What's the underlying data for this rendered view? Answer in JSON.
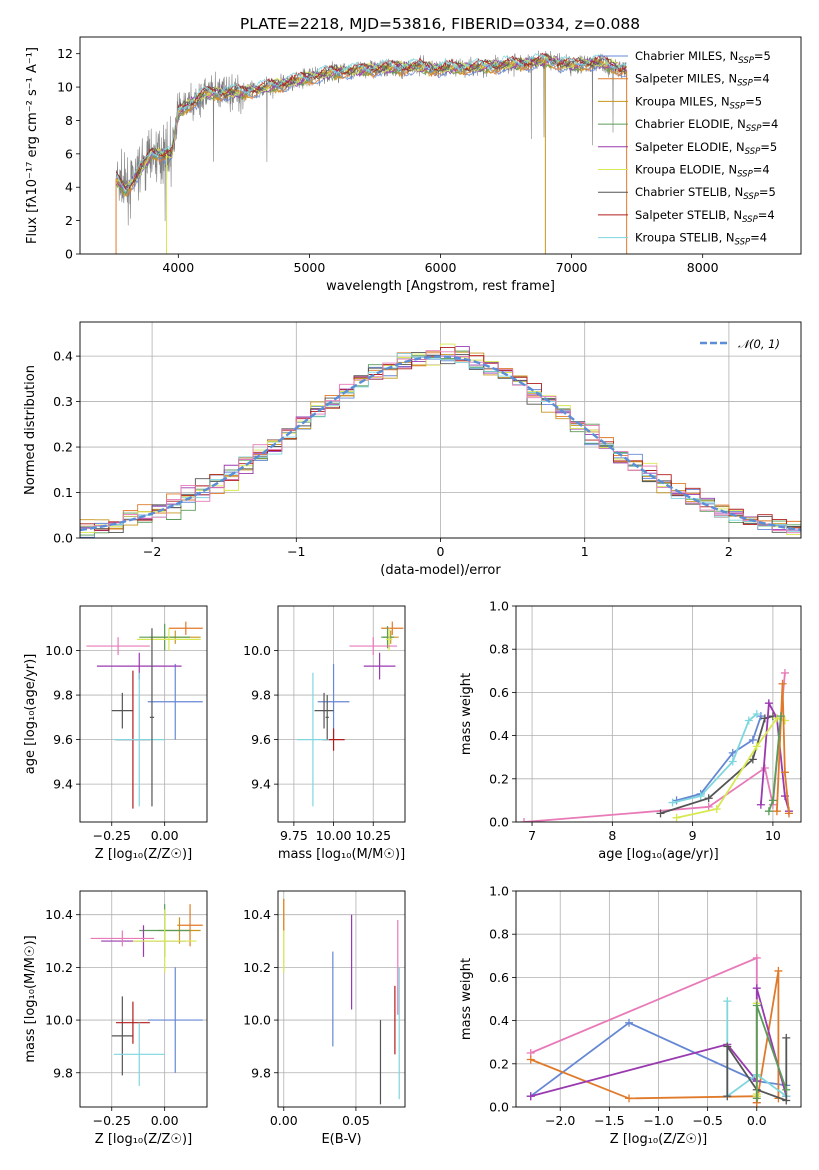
{
  "figure_title": "PLATE=2218, MJD=53816, FIBERID=0334, z=0.088",
  "colors": {
    "Chabrier MILES": "#6688d4",
    "Salpeter MILES": "#e07a2a",
    "Kroupa MILES": "#c8961e",
    "Chabrier ELODIE": "#5a9c5a",
    "Salpeter ELODIE": "#9a3ab0",
    "Kroupa ELODIE": "#d8e850",
    "Chabrier STELIB": "#555555",
    "Salpeter STELIB": "#b01c1c",
    "Kroupa STELIB": "#7fd6de",
    "extra_pink": "#e87ab8",
    "gray_spectrum": "#808080",
    "normal_dash": "#5b8ed6"
  },
  "chart_data": [
    {
      "id": "spectrum",
      "type": "line",
      "xlabel": "wavelength [Angstrom, rest frame]",
      "ylabel": "Flux [fλ10⁻¹⁷ erg cm⁻² s⁻¹ A⁻¹]",
      "xlim": [
        3250,
        8750
      ],
      "ylim": [
        0,
        13
      ],
      "xticks": [
        4000,
        5000,
        6000,
        7000,
        8000
      ],
      "yticks": [
        0,
        2,
        4,
        6,
        8,
        10,
        12
      ],
      "grid": false,
      "legend_position": "right",
      "data_wavelength": [
        3525,
        3600,
        3800,
        3950,
        4000,
        4200,
        4500,
        4800,
        5000,
        5200,
        5500,
        5800,
        6000,
        6300,
        6600,
        6800,
        7000,
        7200,
        7420
      ],
      "data_flux": [
        4.5,
        3.8,
        6.0,
        6.0,
        8.5,
        9.6,
        9.7,
        10.2,
        10.6,
        10.9,
        11.1,
        11.2,
        11.1,
        11.2,
        11.4,
        11.6,
        11.3,
        11.5,
        11.0
      ],
      "legend": [
        {
          "name": "Chabrier MILES",
          "label": "Chabrier MILES, N",
          "sub": "SSP",
          "n": "=5"
        },
        {
          "name": "Salpeter MILES",
          "label": "Salpeter MILES, N",
          "sub": "SSP",
          "n": "=4"
        },
        {
          "name": "Kroupa MILES",
          "label": "Kroupa MILES, N",
          "sub": "SSP",
          "n": "=5"
        },
        {
          "name": "Chabrier ELODIE",
          "label": "Chabrier ELODIE, N",
          "sub": "SSP",
          "n": "=4"
        },
        {
          "name": "Salpeter ELODIE",
          "label": "Salpeter ELODIE, N",
          "sub": "SSP",
          "n": "=5"
        },
        {
          "name": "Kroupa ELODIE",
          "label": "Kroupa ELODIE, N",
          "sub": "SSP",
          "n": "=4"
        },
        {
          "name": "Chabrier STELIB",
          "label": "Chabrier STELIB, N",
          "sub": "SSP",
          "n": "=5"
        },
        {
          "name": "Salpeter STELIB",
          "label": "Salpeter STELIB, N",
          "sub": "SSP",
          "n": "=4"
        },
        {
          "name": "Kroupa STELIB",
          "label": "Kroupa STELIB, N",
          "sub": "SSP",
          "n": "=4"
        }
      ]
    },
    {
      "id": "residuals",
      "type": "line",
      "xlabel": "(data-model)/error",
      "ylabel": "Normed distribution",
      "xlim": [
        -2.5,
        2.5
      ],
      "ylim": [
        0,
        0.475
      ],
      "xticks": [
        -2,
        -1,
        0,
        1,
        2
      ],
      "yticks": [
        0.0,
        0.1,
        0.2,
        0.3,
        0.4
      ],
      "grid": true,
      "legend_position": "top-right",
      "normal_label": "𝒩(0, 1)",
      "bin_width": 0.1
    },
    {
      "id": "age_vs_Z",
      "type": "scatter",
      "xlabel": "Z [log₁₀(Z/Z☉)]",
      "ylabel": "age  [log₁₀(age/yr)]",
      "xlim": [
        -0.4,
        0.2
      ],
      "ylim": [
        9.23,
        10.2
      ],
      "xticks": [
        -0.25,
        0.0
      ],
      "yticks": [
        9.4,
        9.6,
        9.8,
        10.0
      ],
      "grid": true,
      "points": [
        {
          "model": "Chabrier MILES",
          "x": 0.05,
          "y": 9.77,
          "xerr": 0.13,
          "yerr": 0.17
        },
        {
          "model": "Salpeter MILES",
          "x": 0.1,
          "y": 10.1,
          "xerr": 0.08,
          "yerr": 0.03
        },
        {
          "model": "Kroupa MILES",
          "x": 0.05,
          "y": 10.06,
          "xerr": 0.12,
          "yerr": 0.03
        },
        {
          "model": "Chabrier ELODIE",
          "x": 0.0,
          "y": 10.06,
          "xerr": 0.12,
          "yerr": 0.06
        },
        {
          "model": "Salpeter ELODIE",
          "x": -0.12,
          "y": 9.93,
          "xerr": 0.2,
          "yerr": 0.06
        },
        {
          "model": "Kroupa ELODIE",
          "x": 0.02,
          "y": 10.05,
          "xerr": 0.15,
          "yerr": 0.05
        },
        {
          "model": "Chabrier STELIB",
          "x": -0.2,
          "y": 9.73,
          "xerr": 0.05,
          "yerr": 0.08
        },
        {
          "model": "Salpeter STELIB",
          "x": -0.15,
          "y": 9.6,
          "xerr": 0.08,
          "yerr": 0.31
        },
        {
          "model": "Kroupa STELIB",
          "x": -0.12,
          "y": 9.6,
          "xerr": 0.12,
          "yerr": 0.3
        },
        {
          "model": "extra_pink",
          "x": -0.22,
          "y": 10.02,
          "xerr": 0.15,
          "yerr": 0.04
        },
        {
          "model": "Chabrier STELIB",
          "x": -0.06,
          "y": 9.7,
          "xerr": 0.01,
          "yerr": 0.4
        }
      ]
    },
    {
      "id": "age_vs_mass",
      "type": "scatter",
      "xlabel": "mass [log₁₀(M/M☉)]",
      "ylabel": "",
      "xlim": [
        9.65,
        10.45
      ],
      "ylim": [
        9.23,
        10.2
      ],
      "xticks": [
        9.75,
        10.0,
        10.25
      ],
      "xtick_labels": [
        "9.75",
        "10.00",
        "10.25"
      ],
      "yticks": [
        9.4,
        9.6,
        9.8,
        10.0
      ],
      "grid": true,
      "points": [
        {
          "model": "Chabrier MILES",
          "x": 10.0,
          "y": 9.77,
          "xerr": 0.1,
          "yerr": 0.17
        },
        {
          "model": "Salpeter MILES",
          "x": 10.37,
          "y": 10.1,
          "xerr": 0.07,
          "yerr": 0.03
        },
        {
          "model": "Kroupa MILES",
          "x": 10.36,
          "y": 10.06,
          "xerr": 0.05,
          "yerr": 0.03
        },
        {
          "model": "Chabrier ELODIE",
          "x": 10.34,
          "y": 10.06,
          "xerr": 0.04,
          "yerr": 0.05
        },
        {
          "model": "Salpeter ELODIE",
          "x": 10.29,
          "y": 9.93,
          "xerr": 0.1,
          "yerr": 0.06
        },
        {
          "model": "Kroupa ELODIE",
          "x": 10.35,
          "y": 10.05,
          "xerr": 0.02,
          "yerr": 0.05
        },
        {
          "model": "Chabrier STELIB",
          "x": 9.94,
          "y": 9.73,
          "xerr": 0.06,
          "yerr": 0.08
        },
        {
          "model": "Salpeter STELIB",
          "x": 10.0,
          "y": 9.6,
          "xerr": 0.07,
          "yerr": 0.05
        },
        {
          "model": "Kroupa STELIB",
          "x": 9.87,
          "y": 9.6,
          "xerr": 0.1,
          "yerr": 0.3
        },
        {
          "model": "extra_pink",
          "x": 10.25,
          "y": 10.02,
          "xerr": 0.15,
          "yerr": 0.04
        },
        {
          "model": "Chabrier STELIB",
          "x": 9.96,
          "y": 9.7,
          "xerr": 0.01,
          "yerr": 0.1
        }
      ]
    },
    {
      "id": "mass_weight_vs_age",
      "type": "line",
      "xlabel": "age  [log₁₀(age/yr)]",
      "ylabel": "mass weight",
      "xlim": [
        6.8,
        10.35
      ],
      "ylim": [
        0,
        1.0
      ],
      "xticks": [
        7,
        8,
        9,
        10
      ],
      "yticks": [
        0.0,
        0.2,
        0.4,
        0.6,
        0.8,
        1.0
      ],
      "grid": true,
      "series": [
        {
          "model": "extra_pink",
          "x": [
            6.9,
            9.2,
            9.9,
            10.0,
            10.15
          ],
          "y": [
            0.0,
            0.07,
            0.25,
            0.08,
            0.69
          ]
        },
        {
          "model": "Chabrier MILES",
          "x": [
            8.8,
            9.1,
            9.5,
            9.75,
            9.85
          ],
          "y": [
            0.1,
            0.13,
            0.32,
            0.38,
            0.49
          ]
        },
        {
          "model": "Kroupa STELIB",
          "x": [
            8.75,
            9.1,
            9.5,
            9.7,
            9.8
          ],
          "y": [
            0.09,
            0.12,
            0.28,
            0.47,
            0.5
          ]
        },
        {
          "model": "Chabrier STELIB",
          "x": [
            8.6,
            9.2,
            9.75,
            9.9,
            10.0
          ],
          "y": [
            0.04,
            0.11,
            0.29,
            0.48,
            0.49
          ]
        },
        {
          "model": "Salpeter ELODIE",
          "x": [
            9.85,
            9.95,
            10.05,
            10.15,
            10.2
          ],
          "y": [
            0.08,
            0.55,
            0.48,
            0.12,
            0.05
          ]
        },
        {
          "model": "Kroupa ELODIE",
          "x": [
            8.8,
            9.3,
            9.8,
            10.05,
            10.15
          ],
          "y": [
            0.02,
            0.06,
            0.35,
            0.48,
            0.47
          ]
        },
        {
          "model": "Salpeter MILES",
          "x": [
            10.05,
            10.12,
            10.15,
            10.2
          ],
          "y": [
            0.05,
            0.64,
            0.23,
            0.04
          ]
        },
        {
          "model": "Chabrier ELODIE",
          "x": [
            9.95,
            10.0,
            10.1
          ],
          "y": [
            0.05,
            0.1,
            0.49
          ]
        }
      ]
    },
    {
      "id": "mass_vs_Z",
      "type": "scatter",
      "xlabel": "Z [log₁₀(Z/Z☉)]",
      "ylabel": "mass [log₁₀(M/M☉)]",
      "xlim": [
        -0.4,
        0.2
      ],
      "ylim": [
        9.67,
        10.49
      ],
      "xticks": [
        -0.25,
        0.0
      ],
      "yticks": [
        9.8,
        10.0,
        10.2,
        10.4
      ],
      "grid": true,
      "points": [
        {
          "model": "Chabrier MILES",
          "x": 0.05,
          "y": 10.0,
          "xerr": 0.13,
          "yerr": 0.2
        },
        {
          "model": "Salpeter MILES",
          "x": 0.12,
          "y": 10.36,
          "xerr": 0.06,
          "yerr": 0.08
        },
        {
          "model": "Kroupa MILES",
          "x": 0.07,
          "y": 10.34,
          "xerr": 0.1,
          "yerr": 0.05
        },
        {
          "model": "Chabrier ELODIE",
          "x": 0.0,
          "y": 10.34,
          "xerr": 0.12,
          "yerr": 0.1
        },
        {
          "model": "Salpeter ELODIE",
          "x": -0.1,
          "y": 10.3,
          "xerr": 0.2,
          "yerr": 0.06
        },
        {
          "model": "Kroupa ELODIE",
          "x": 0.0,
          "y": 10.3,
          "xerr": 0.15,
          "yerr": 0.12
        },
        {
          "model": "Chabrier STELIB",
          "x": -0.2,
          "y": 9.94,
          "xerr": 0.05,
          "yerr": 0.15
        },
        {
          "model": "Salpeter STELIB",
          "x": -0.15,
          "y": 9.99,
          "xerr": 0.08,
          "yerr": 0.08
        },
        {
          "model": "Kroupa STELIB",
          "x": -0.12,
          "y": 9.87,
          "xerr": 0.12,
          "yerr": 0.12
        },
        {
          "model": "extra_pink",
          "x": -0.2,
          "y": 10.31,
          "xerr": 0.15,
          "yerr": 0.03
        }
      ]
    },
    {
      "id": "mass_vs_ebv",
      "type": "scatter",
      "xlabel": "E(B-V)",
      "ylabel": "",
      "xlim": [
        -0.004,
        0.084
      ],
      "ylim": [
        9.67,
        10.49
      ],
      "xticks": [
        0.0,
        0.05
      ],
      "xtick_labels": [
        "0.00",
        "0.05"
      ],
      "yticks": [
        9.8,
        10.0,
        10.2,
        10.4
      ],
      "grid": true,
      "points": [
        {
          "model": "Chabrier MILES",
          "x": 0.034,
          "y": 10.08,
          "yerr": 0.18
        },
        {
          "model": "Salpeter ELODIE",
          "x": 0.047,
          "y": 10.22,
          "yerr": 0.18
        },
        {
          "model": "Chabrier STELIB",
          "x": 0.067,
          "y": 9.84,
          "yerr": 0.16
        },
        {
          "model": "Salpeter STELIB",
          "x": 0.077,
          "y": 10.0,
          "yerr": 0.13
        },
        {
          "model": "extra_pink",
          "x": 0.079,
          "y": 10.2,
          "yerr": 0.18
        },
        {
          "model": "Kroupa STELIB",
          "x": 0.08,
          "y": 9.95,
          "yerr": 0.25
        },
        {
          "model": "Kroupa ELODIE",
          "x": 0.0,
          "y": 10.32,
          "yerr": 0.14
        },
        {
          "model": "Salpeter MILES",
          "x": 0.0,
          "y": 10.4,
          "yerr": 0.06
        }
      ]
    },
    {
      "id": "mass_weight_vs_Z",
      "type": "line",
      "xlabel": "Z [log₁₀(Z/Z☉)]",
      "ylabel": "mass weight",
      "xlim": [
        -2.45,
        0.45
      ],
      "ylim": [
        0,
        1.0
      ],
      "xticks": [
        -2.0,
        -1.5,
        -1.0,
        -0.5,
        0.0
      ],
      "xtick_labels": [
        "−2.0",
        "−1.5",
        "−1.0",
        "−0.5",
        "0.0"
      ],
      "yticks": [
        0.0,
        0.2,
        0.4,
        0.6,
        0.8,
        1.0
      ],
      "grid": true,
      "series": [
        {
          "model": "extra_pink",
          "x": [
            -2.3,
            0.0,
            0.0
          ],
          "y": [
            0.25,
            0.69,
            0.02
          ]
        },
        {
          "model": "Chabrier MILES",
          "x": [
            -2.3,
            -1.3,
            0.0,
            0.3
          ],
          "y": [
            0.05,
            0.39,
            0.12,
            0.1
          ]
        },
        {
          "model": "Salpeter MILES",
          "x": [
            -2.3,
            -1.3,
            0.0,
            0.0,
            0.22,
            0.22
          ],
          "y": [
            0.22,
            0.04,
            0.05,
            0.02,
            0.63,
            0.04
          ]
        },
        {
          "model": "Salpeter ELODIE",
          "x": [
            -2.3,
            -0.3,
            0.0,
            0.0,
            0.3
          ],
          "y": [
            0.05,
            0.29,
            0.12,
            0.55,
            0.05
          ]
        },
        {
          "model": "Kroupa STELIB",
          "x": [
            -0.3,
            -0.3,
            0.0,
            0.3
          ],
          "y": [
            0.49,
            0.05,
            0.15,
            0.05
          ]
        },
        {
          "model": "Chabrier STELIB",
          "x": [
            -0.3,
            -0.3,
            0.0,
            0.3,
            0.3
          ],
          "y": [
            0.05,
            0.28,
            0.08,
            0.03,
            0.32
          ]
        },
        {
          "model": "Kroupa ELODIE",
          "x": [
            0.0,
            0.0,
            0.0
          ],
          "y": [
            0.05,
            0.48,
            0.06
          ]
        },
        {
          "model": "Chabrier ELODIE",
          "x": [
            0.0,
            0.0,
            0.3
          ],
          "y": [
            0.04,
            0.47,
            0.08
          ]
        }
      ]
    }
  ]
}
